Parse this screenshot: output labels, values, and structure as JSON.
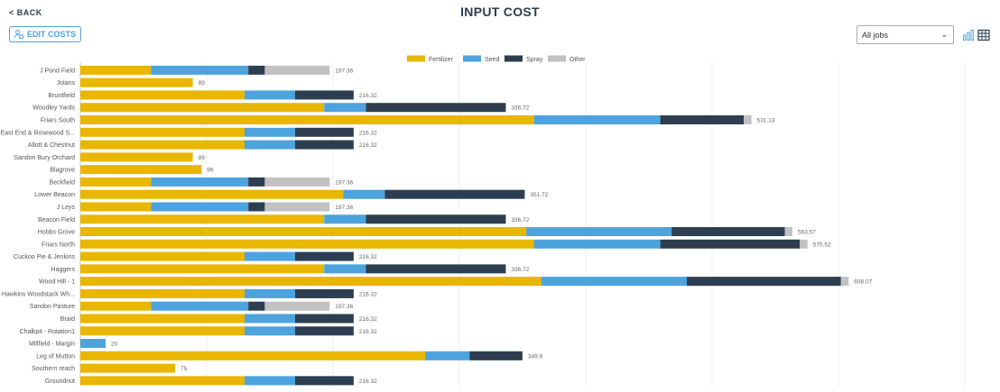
{
  "header": {
    "back_label": "< BACK",
    "title": "INPUT COST",
    "edit_label": "EDIT COSTS"
  },
  "filter": {
    "selected": "All jobs"
  },
  "toolbar": {
    "chart_icon": "bar-chart-icon",
    "table_icon": "table-icon"
  },
  "colors": {
    "Fertilizer": "#e9b600",
    "Seed": "#4ca3dd",
    "Spray": "#2c3e50",
    "Other": "#c2c2c2"
  },
  "chart_data": {
    "type": "bar",
    "orientation": "horizontal",
    "stacked": true,
    "title": "INPUT COST",
    "legend": [
      "Fertilizer",
      "Seed",
      "Spray",
      "Other"
    ],
    "legend_position": "top",
    "xlim": [
      0,
      700
    ],
    "grid": true,
    "categories": [
      "J Pond Field",
      "Jolans",
      "Bruntfield",
      "Woodley Yards",
      "Friars South",
      "East End & Rosewood S...",
      "Allott & Chestnut",
      "Sandon Bury Orchard",
      "Blagrove",
      "Beckfield",
      "Lower Beacon",
      "J Leys",
      "Beacon Field",
      "Hobbs Grove",
      "Friars North",
      "Cuckoo Pie & Jenkins",
      "Haggers",
      "Wood Hill - 1",
      "Hawkins Woodstack Wh...",
      "Sandon Pasture",
      "Braid",
      "Chalkpit - Rotation1",
      "Millfield - Margin",
      "Leg of Mutton",
      "Southern reach",
      "Groundnut"
    ],
    "series": [
      {
        "name": "Fertilizer",
        "values": [
          56,
          89,
          130,
          193,
          359,
          130,
          130,
          89,
          96,
          56,
          208,
          56,
          193,
          353,
          359,
          130,
          193,
          365,
          130,
          56,
          130,
          130,
          0,
          273,
          75,
          130
        ]
      },
      {
        "name": "Seed",
        "values": [
          77,
          0,
          40,
          33,
          100,
          40,
          40,
          0,
          0,
          77,
          33,
          77,
          33,
          115,
          100,
          40,
          33,
          115,
          40,
          77,
          40,
          40,
          20,
          35,
          0,
          40
        ]
      },
      {
        "name": "Spray",
        "values": [
          13,
          0,
          46.32,
          110.72,
          66,
          46.32,
          46.32,
          0,
          0,
          13,
          110.72,
          13,
          110.72,
          89.5,
          110.5,
          46.32,
          110.72,
          122,
          46.32,
          13,
          46.32,
          46.32,
          0,
          41.9,
          0,
          46.32
        ]
      },
      {
        "name": "Other",
        "values": [
          51.36,
          0,
          0,
          0,
          6.13,
          0,
          0,
          0,
          0,
          51.36,
          0,
          51.36,
          0,
          6.07,
          6.02,
          0,
          0,
          6.07,
          0,
          51.36,
          0,
          0,
          0,
          0,
          0,
          0
        ]
      }
    ],
    "totals": [
      "197.36",
      "89",
      "216.32",
      "336.72",
      "531.13",
      "216.32",
      "216.32",
      "89",
      "96",
      "197.36",
      "351.72",
      "197.36",
      "336.72",
      "563.57",
      "575.52",
      "216.32",
      "336.72",
      "608.07",
      "216.32",
      "197.36",
      "216.32",
      "216.32",
      "20",
      "349.9",
      "75",
      "216.32"
    ]
  }
}
